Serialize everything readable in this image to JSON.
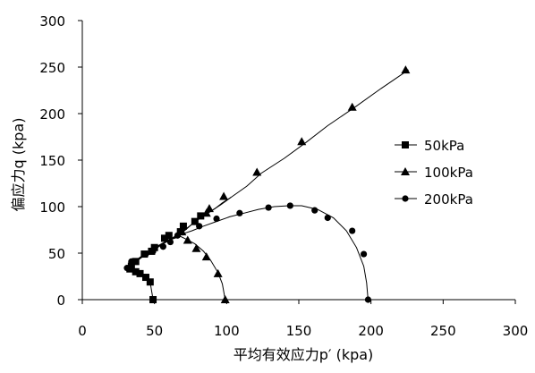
{
  "chart_data": {
    "type": "scatter",
    "xlabel": "平均有效应力p′ (kpa)",
    "ylabel": "偏应力q (kpa)",
    "xlim": [
      0,
      300
    ],
    "ylim": [
      0,
      300
    ],
    "xticks": [
      "0",
      "50",
      "100",
      "150",
      "200",
      "250",
      "300"
    ],
    "yticks": [
      "0",
      "50",
      "100",
      "150",
      "200",
      "250",
      "300"
    ],
    "grid": false,
    "legend_position": "right",
    "line_color": "#000000",
    "series": [
      {
        "name": "50kPa",
        "marker": "square",
        "points": [
          [
            49,
            0
          ],
          [
            47,
            19
          ],
          [
            44,
            24
          ],
          [
            40,
            29
          ],
          [
            36,
            31
          ],
          [
            33,
            34
          ],
          [
            34,
            37
          ],
          [
            37,
            41
          ],
          [
            42,
            47
          ],
          [
            47,
            51
          ],
          [
            51,
            54
          ],
          [
            53,
            57
          ],
          [
            58,
            62
          ],
          [
            62,
            65
          ],
          [
            66,
            69
          ],
          [
            70,
            73
          ],
          [
            73,
            77
          ],
          [
            78,
            84
          ],
          [
            83,
            89
          ],
          [
            87,
            93
          ],
          [
            92,
            98
          ],
          [
            97,
            104
          ],
          [
            103,
            110
          ]
        ],
        "markers": [
          [
            49,
            0
          ],
          [
            47,
            19
          ],
          [
            44,
            24
          ],
          [
            40,
            28
          ],
          [
            37,
            30
          ],
          [
            33,
            33
          ],
          [
            34,
            36
          ],
          [
            37,
            41
          ],
          [
            43,
            49
          ],
          [
            48,
            52
          ],
          [
            50,
            56
          ],
          [
            57,
            66
          ],
          [
            60,
            69
          ],
          [
            68,
            73
          ],
          [
            70,
            79
          ],
          [
            78,
            84
          ],
          [
            82,
            90
          ]
        ]
      },
      {
        "name": "100kPa",
        "marker": "triangle",
        "points": [
          [
            99,
            0
          ],
          [
            97,
            17
          ],
          [
            94,
            29
          ],
          [
            89,
            42
          ],
          [
            84,
            52
          ],
          [
            78,
            60
          ],
          [
            72,
            65
          ],
          [
            68,
            68
          ],
          [
            62,
            65
          ],
          [
            56,
            60
          ],
          [
            50,
            56
          ],
          [
            43,
            49
          ],
          [
            37,
            42
          ],
          [
            33,
            36
          ],
          [
            35,
            38
          ],
          [
            40,
            44
          ],
          [
            46,
            51
          ],
          [
            52,
            57
          ],
          [
            58,
            62
          ],
          [
            64,
            68
          ],
          [
            70,
            74
          ],
          [
            76,
            81
          ],
          [
            82,
            88
          ],
          [
            89,
            95
          ],
          [
            96,
            102
          ],
          [
            103,
            110
          ],
          [
            114,
            122
          ],
          [
            124,
            136
          ],
          [
            140,
            152
          ],
          [
            155,
            169
          ],
          [
            170,
            187
          ],
          [
            189,
            207
          ],
          [
            207,
            227
          ],
          [
            226,
            247
          ]
        ],
        "markers": [
          [
            99,
            0
          ],
          [
            94,
            28
          ],
          [
            86,
            46
          ],
          [
            79,
            55
          ],
          [
            73,
            64
          ],
          [
            69,
            73
          ],
          [
            86,
            93
          ],
          [
            88,
            98
          ],
          [
            98,
            111
          ],
          [
            121,
            137
          ],
          [
            152,
            170
          ],
          [
            187,
            207
          ],
          [
            224,
            247
          ]
        ]
      },
      {
        "name": "200kPa",
        "marker": "circle",
        "points": [
          [
            198,
            0
          ],
          [
            197,
            18
          ],
          [
            195,
            36
          ],
          [
            190,
            56
          ],
          [
            183,
            74
          ],
          [
            174,
            88
          ],
          [
            163,
            97
          ],
          [
            152,
            101
          ],
          [
            143,
            101
          ],
          [
            133,
            100
          ],
          [
            122,
            97
          ],
          [
            112,
            93
          ],
          [
            102,
            89
          ],
          [
            93,
            84
          ],
          [
            84,
            79
          ],
          [
            76,
            74
          ],
          [
            70,
            71
          ],
          [
            63,
            66
          ],
          [
            56,
            61
          ],
          [
            49,
            55
          ],
          [
            43,
            49
          ],
          [
            38,
            43
          ],
          [
            34,
            38
          ],
          [
            31,
            34
          ]
        ],
        "markers": [
          [
            198,
            0
          ],
          [
            195,
            49
          ],
          [
            187,
            74
          ],
          [
            170,
            88
          ],
          [
            161,
            96
          ],
          [
            144,
            101
          ],
          [
            129,
            99
          ],
          [
            109,
            93
          ],
          [
            93,
            87
          ],
          [
            81,
            79
          ],
          [
            66,
            69
          ],
          [
            61,
            62
          ],
          [
            56,
            57
          ],
          [
            49,
            52
          ],
          [
            44,
            49
          ],
          [
            34,
            41
          ],
          [
            31,
            34
          ]
        ]
      }
    ]
  }
}
